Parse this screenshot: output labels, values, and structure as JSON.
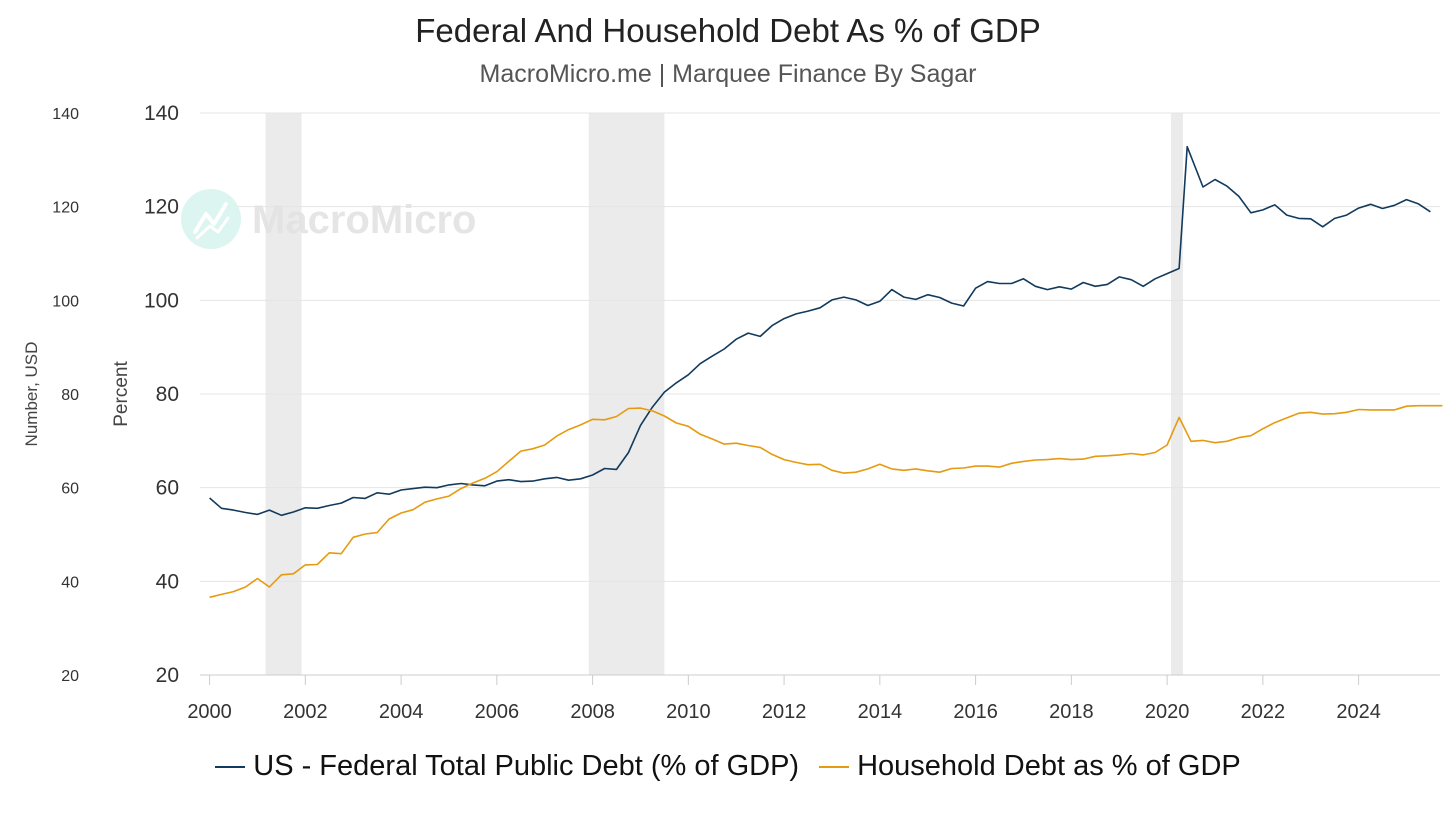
{
  "header": {
    "title": "Federal And Household Debt As % of GDP",
    "subtitle": "MacroMicro.me | Marquee Finance By Sagar"
  },
  "watermark": {
    "text": "MacroMicro",
    "icon": "chart-logo-icon"
  },
  "colors": {
    "federal": "#123a5c",
    "household": "#e69a10",
    "recession": "#ebebeb",
    "grid": "#e4e4e4"
  },
  "chart_data": {
    "type": "line",
    "title": "Federal And Household Debt As % of GDP",
    "subtitle": "MacroMicro.me | Marquee Finance By Sagar",
    "xlabel": "",
    "ylabel_left_outer": "Number, USD",
    "ylabel_left_inner": "Percent",
    "xlim": [
      1999.8,
      2025.7
    ],
    "ylim": [
      20,
      140
    ],
    "yticks": [
      20,
      40,
      60,
      80,
      100,
      120,
      140
    ],
    "xticks": [
      "2000",
      "2002",
      "2004",
      "2006",
      "2008",
      "2010",
      "2012",
      "2014",
      "2016",
      "2018",
      "2020",
      "2022",
      "2024"
    ],
    "grid": true,
    "legend_position": "bottom",
    "recessions": [
      [
        2001.17,
        2001.92
      ],
      [
        2007.92,
        2009.5
      ],
      [
        2020.08,
        2020.33
      ]
    ],
    "series": [
      {
        "name": "US - Federal Total Public Debt (% of GDP)",
        "color": "#123a5c",
        "points": [
          [
            2000.0,
            57.8
          ],
          [
            2000.25,
            55.6
          ],
          [
            2000.5,
            55.2
          ],
          [
            2000.75,
            54.7
          ],
          [
            2001.0,
            54.3
          ],
          [
            2001.25,
            55.2
          ],
          [
            2001.5,
            54.1
          ],
          [
            2001.75,
            54.8
          ],
          [
            2002.0,
            55.7
          ],
          [
            2002.25,
            55.6
          ],
          [
            2002.5,
            56.2
          ],
          [
            2002.75,
            56.7
          ],
          [
            2003.0,
            57.9
          ],
          [
            2003.25,
            57.7
          ],
          [
            2003.5,
            58.9
          ],
          [
            2003.75,
            58.6
          ],
          [
            2004.0,
            59.5
          ],
          [
            2004.25,
            59.8
          ],
          [
            2004.5,
            60.1
          ],
          [
            2004.75,
            60.0
          ],
          [
            2005.0,
            60.6
          ],
          [
            2005.25,
            60.9
          ],
          [
            2005.5,
            60.6
          ],
          [
            2005.75,
            60.4
          ],
          [
            2006.0,
            61.4
          ],
          [
            2006.25,
            61.7
          ],
          [
            2006.5,
            61.3
          ],
          [
            2006.75,
            61.4
          ],
          [
            2007.0,
            61.9
          ],
          [
            2007.25,
            62.2
          ],
          [
            2007.5,
            61.6
          ],
          [
            2007.75,
            61.9
          ],
          [
            2008.0,
            62.7
          ],
          [
            2008.25,
            64.1
          ],
          [
            2008.5,
            63.9
          ],
          [
            2008.75,
            67.5
          ],
          [
            2009.0,
            73.3
          ],
          [
            2009.25,
            77.2
          ],
          [
            2009.5,
            80.4
          ],
          [
            2009.75,
            82.4
          ],
          [
            2010.0,
            84.1
          ],
          [
            2010.25,
            86.5
          ],
          [
            2010.5,
            88.1
          ],
          [
            2010.75,
            89.6
          ],
          [
            2011.0,
            91.7
          ],
          [
            2011.25,
            93.0
          ],
          [
            2011.5,
            92.3
          ],
          [
            2011.75,
            94.6
          ],
          [
            2012.0,
            96.1
          ],
          [
            2012.25,
            97.1
          ],
          [
            2012.5,
            97.7
          ],
          [
            2012.75,
            98.4
          ],
          [
            2013.0,
            100.1
          ],
          [
            2013.25,
            100.7
          ],
          [
            2013.5,
            100.1
          ],
          [
            2013.75,
            98.9
          ],
          [
            2014.0,
            99.8
          ],
          [
            2014.25,
            102.3
          ],
          [
            2014.5,
            100.7
          ],
          [
            2014.75,
            100.2
          ],
          [
            2015.0,
            101.2
          ],
          [
            2015.25,
            100.6
          ],
          [
            2015.5,
            99.4
          ],
          [
            2015.75,
            98.8
          ],
          [
            2016.0,
            102.6
          ],
          [
            2016.25,
            104.0
          ],
          [
            2016.5,
            103.6
          ],
          [
            2016.75,
            103.6
          ],
          [
            2017.0,
            104.6
          ],
          [
            2017.25,
            103.0
          ],
          [
            2017.5,
            102.3
          ],
          [
            2017.75,
            102.9
          ],
          [
            2018.0,
            102.4
          ],
          [
            2018.25,
            103.8
          ],
          [
            2018.5,
            103.0
          ],
          [
            2018.75,
            103.4
          ],
          [
            2019.0,
            105.0
          ],
          [
            2019.25,
            104.4
          ],
          [
            2019.5,
            103.0
          ],
          [
            2019.75,
            104.6
          ],
          [
            2020.0,
            105.7
          ],
          [
            2020.25,
            106.8
          ],
          [
            2020.42,
            132.8
          ],
          [
            2020.75,
            124.2
          ],
          [
            2021.0,
            125.8
          ],
          [
            2021.25,
            124.4
          ],
          [
            2021.5,
            122.2
          ],
          [
            2021.75,
            118.7
          ],
          [
            2022.0,
            119.3
          ],
          [
            2022.25,
            120.4
          ],
          [
            2022.5,
            118.2
          ],
          [
            2022.75,
            117.5
          ],
          [
            2023.0,
            117.4
          ],
          [
            2023.25,
            115.7
          ],
          [
            2023.5,
            117.5
          ],
          [
            2023.75,
            118.2
          ],
          [
            2024.0,
            119.7
          ],
          [
            2024.25,
            120.5
          ],
          [
            2024.5,
            119.6
          ],
          [
            2024.75,
            120.3
          ],
          [
            2025.0,
            121.5
          ],
          [
            2025.25,
            120.6
          ],
          [
            2025.5,
            118.9
          ]
        ]
      },
      {
        "name": "Household Debt as % of GDP",
        "color": "#e69a10",
        "points": [
          [
            2000.0,
            36.6
          ],
          [
            2000.25,
            37.2
          ],
          [
            2000.5,
            37.8
          ],
          [
            2000.75,
            38.8
          ],
          [
            2001.0,
            40.6
          ],
          [
            2001.25,
            38.8
          ],
          [
            2001.5,
            41.4
          ],
          [
            2001.75,
            41.6
          ],
          [
            2002.0,
            43.5
          ],
          [
            2002.25,
            43.6
          ],
          [
            2002.5,
            46.1
          ],
          [
            2002.75,
            45.9
          ],
          [
            2003.0,
            49.4
          ],
          [
            2003.25,
            50.1
          ],
          [
            2003.5,
            50.4
          ],
          [
            2003.75,
            53.3
          ],
          [
            2004.0,
            54.6
          ],
          [
            2004.25,
            55.3
          ],
          [
            2004.5,
            56.9
          ],
          [
            2004.75,
            57.6
          ],
          [
            2005.0,
            58.2
          ],
          [
            2005.25,
            59.8
          ],
          [
            2005.5,
            61.0
          ],
          [
            2005.75,
            62.0
          ],
          [
            2006.0,
            63.4
          ],
          [
            2006.25,
            65.6
          ],
          [
            2006.5,
            67.8
          ],
          [
            2006.75,
            68.3
          ],
          [
            2007.0,
            69.1
          ],
          [
            2007.25,
            71.0
          ],
          [
            2007.5,
            72.4
          ],
          [
            2007.75,
            73.4
          ],
          [
            2008.0,
            74.6
          ],
          [
            2008.25,
            74.5
          ],
          [
            2008.5,
            75.2
          ],
          [
            2008.75,
            76.9
          ],
          [
            2009.0,
            77.0
          ],
          [
            2009.25,
            76.4
          ],
          [
            2009.5,
            75.3
          ],
          [
            2009.75,
            73.8
          ],
          [
            2010.0,
            73.1
          ],
          [
            2010.25,
            71.4
          ],
          [
            2010.5,
            70.4
          ],
          [
            2010.75,
            69.3
          ],
          [
            2011.0,
            69.5
          ],
          [
            2011.25,
            69.0
          ],
          [
            2011.5,
            68.6
          ],
          [
            2011.75,
            67.1
          ],
          [
            2012.0,
            66.0
          ],
          [
            2012.25,
            65.4
          ],
          [
            2012.5,
            64.9
          ],
          [
            2012.75,
            65.0
          ],
          [
            2013.0,
            63.7
          ],
          [
            2013.25,
            63.1
          ],
          [
            2013.5,
            63.3
          ],
          [
            2013.75,
            64.0
          ],
          [
            2014.0,
            65.0
          ],
          [
            2014.25,
            64.0
          ],
          [
            2014.5,
            63.7
          ],
          [
            2014.75,
            64.0
          ],
          [
            2015.0,
            63.6
          ],
          [
            2015.25,
            63.3
          ],
          [
            2015.5,
            64.1
          ],
          [
            2015.75,
            64.2
          ],
          [
            2016.0,
            64.6
          ],
          [
            2016.25,
            64.6
          ],
          [
            2016.5,
            64.4
          ],
          [
            2016.75,
            65.2
          ],
          [
            2017.0,
            65.6
          ],
          [
            2017.25,
            65.9
          ],
          [
            2017.5,
            66.0
          ],
          [
            2017.75,
            66.2
          ],
          [
            2018.0,
            66.0
          ],
          [
            2018.25,
            66.1
          ],
          [
            2018.5,
            66.7
          ],
          [
            2018.75,
            66.8
          ],
          [
            2019.0,
            67.0
          ],
          [
            2019.25,
            67.3
          ],
          [
            2019.5,
            67.0
          ],
          [
            2019.75,
            67.5
          ],
          [
            2020.0,
            69.1
          ],
          [
            2020.25,
            75.0
          ],
          [
            2020.5,
            69.9
          ],
          [
            2020.75,
            70.1
          ],
          [
            2021.0,
            69.6
          ],
          [
            2021.25,
            69.9
          ],
          [
            2021.5,
            70.7
          ],
          [
            2021.75,
            71.1
          ],
          [
            2022.0,
            72.6
          ],
          [
            2022.25,
            73.9
          ],
          [
            2022.5,
            74.9
          ],
          [
            2022.75,
            75.9
          ],
          [
            2023.0,
            76.1
          ],
          [
            2023.25,
            75.7
          ],
          [
            2023.5,
            75.8
          ],
          [
            2023.75,
            76.1
          ],
          [
            2024.0,
            76.7
          ],
          [
            2024.25,
            76.6
          ],
          [
            2024.5,
            76.6
          ],
          [
            2024.75,
            76.6
          ],
          [
            2025.0,
            77.4
          ],
          [
            2025.25,
            77.5
          ],
          [
            2025.5,
            77.5
          ],
          [
            2025.75,
            77.5
          ]
        ]
      }
    ]
  }
}
